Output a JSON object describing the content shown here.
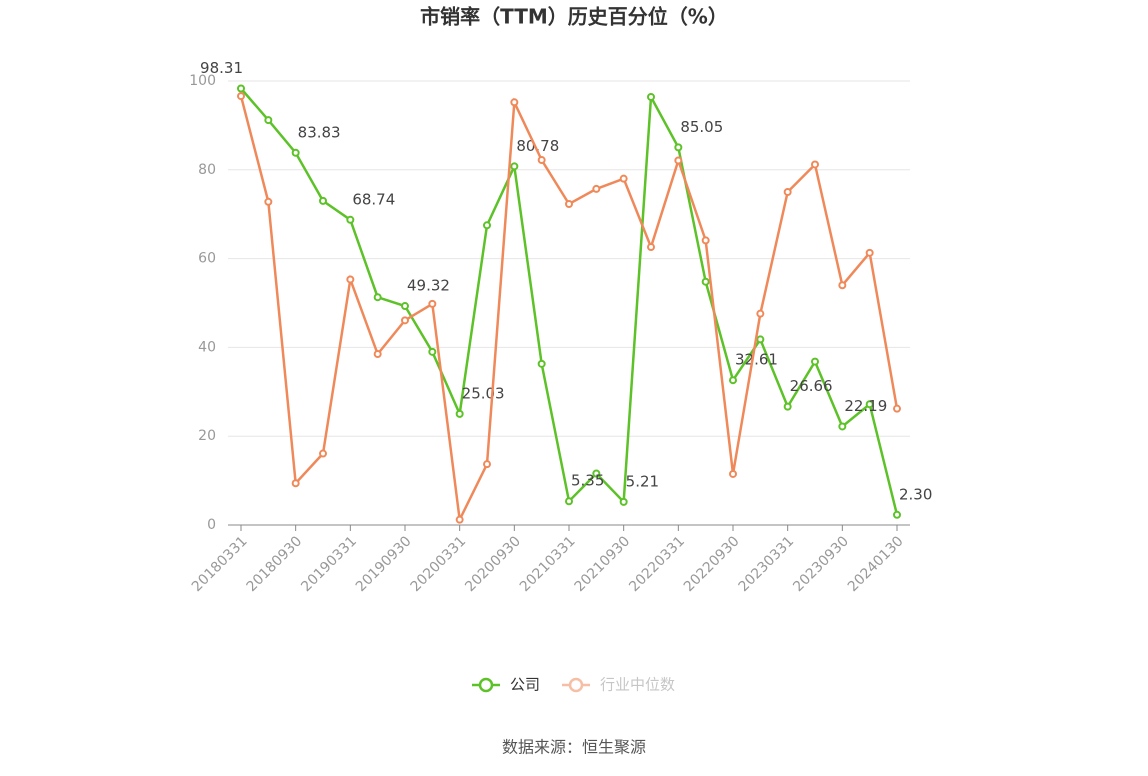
{
  "chart_data": {
    "type": "line",
    "title": "市销率（TTM）历史百分位（%）",
    "categories": [
      "20180331",
      null,
      "20180930",
      null,
      "20190331",
      null,
      "20190930",
      null,
      "20200331",
      null,
      "20200930",
      null,
      "20210331",
      null,
      "20210930",
      null,
      "20220331",
      null,
      "20220930",
      null,
      "20230331",
      null,
      "20230930",
      null,
      "20240130"
    ],
    "series": [
      {
        "name": "公司",
        "color": "#5cc228",
        "values": [
          98.31,
          91.2,
          83.83,
          73,
          68.74,
          51.3,
          49.32,
          39,
          25.03,
          67.5,
          80.78,
          36.3,
          5.35,
          11.6,
          5.21,
          96.4,
          85.05,
          54.8,
          32.61,
          41.8,
          26.66,
          36.8,
          22.19,
          27.2,
          2.3
        ],
        "value_labels": [
          "98.31",
          null,
          "83.83",
          null,
          "68.74",
          null,
          "49.32",
          null,
          "25.03",
          null,
          "80.78",
          null,
          "5.35",
          null,
          "5.21",
          null,
          "85.05",
          null,
          "32.61",
          null,
          "26.66",
          null,
          "22.19",
          null,
          "2.30"
        ]
      },
      {
        "name": "行业中位数",
        "color": "#f0895a",
        "values": [
          96.6,
          72.8,
          9.4,
          16.1,
          55.3,
          38.5,
          46.1,
          49.8,
          1.2,
          13.7,
          95.2,
          82.2,
          72.3,
          75.7,
          78,
          62.6,
          82.1,
          64.1,
          11.5,
          47.6,
          75,
          81.2,
          54,
          61.3,
          26.2
        ]
      }
    ],
    "ylim": [
      0,
      100
    ],
    "yticks": [
      0,
      20,
      40,
      60,
      80,
      100
    ],
    "grid": true,
    "source": "数据来源：恒生聚源"
  }
}
